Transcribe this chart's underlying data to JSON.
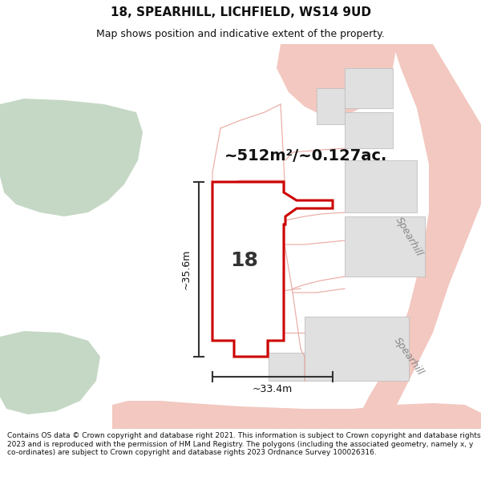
{
  "title_line1": "18, SPEARHILL, LICHFIELD, WS14 9UD",
  "title_line2": "Map shows position and indicative extent of the property.",
  "area_label": "~512m²/~0.127ac.",
  "dim_vertical": "~35.6m",
  "dim_horizontal": "~33.4m",
  "number_label": "18",
  "road_label1": "Spearhill",
  "road_label2": "Spearhill",
  "footer_text": "Contains OS data © Crown copyright and database right 2021. This information is subject to Crown copyright and database rights 2023 and is reproduced with the permission of HM Land Registry. The polygons (including the associated geometry, namely x, y co-ordinates) are subject to Crown copyright and database rights 2023 Ordnance Survey 100026316.",
  "map_bg": "#f0f4f0",
  "green_blob_color": "#c5d8c5",
  "plot_color": "#e0e0e0",
  "road_color": "#f2c8c0",
  "road_line_color": "#e8a8a0",
  "red_boundary_color": "#cc0000",
  "dim_color": "#333333",
  "white": "#ffffff",
  "title_fontsize": 11,
  "subtitle_fontsize": 9,
  "area_fontsize": 14,
  "number_fontsize": 18,
  "dim_fontsize": 9,
  "road_fontsize": 9,
  "footer_fontsize": 6.5
}
